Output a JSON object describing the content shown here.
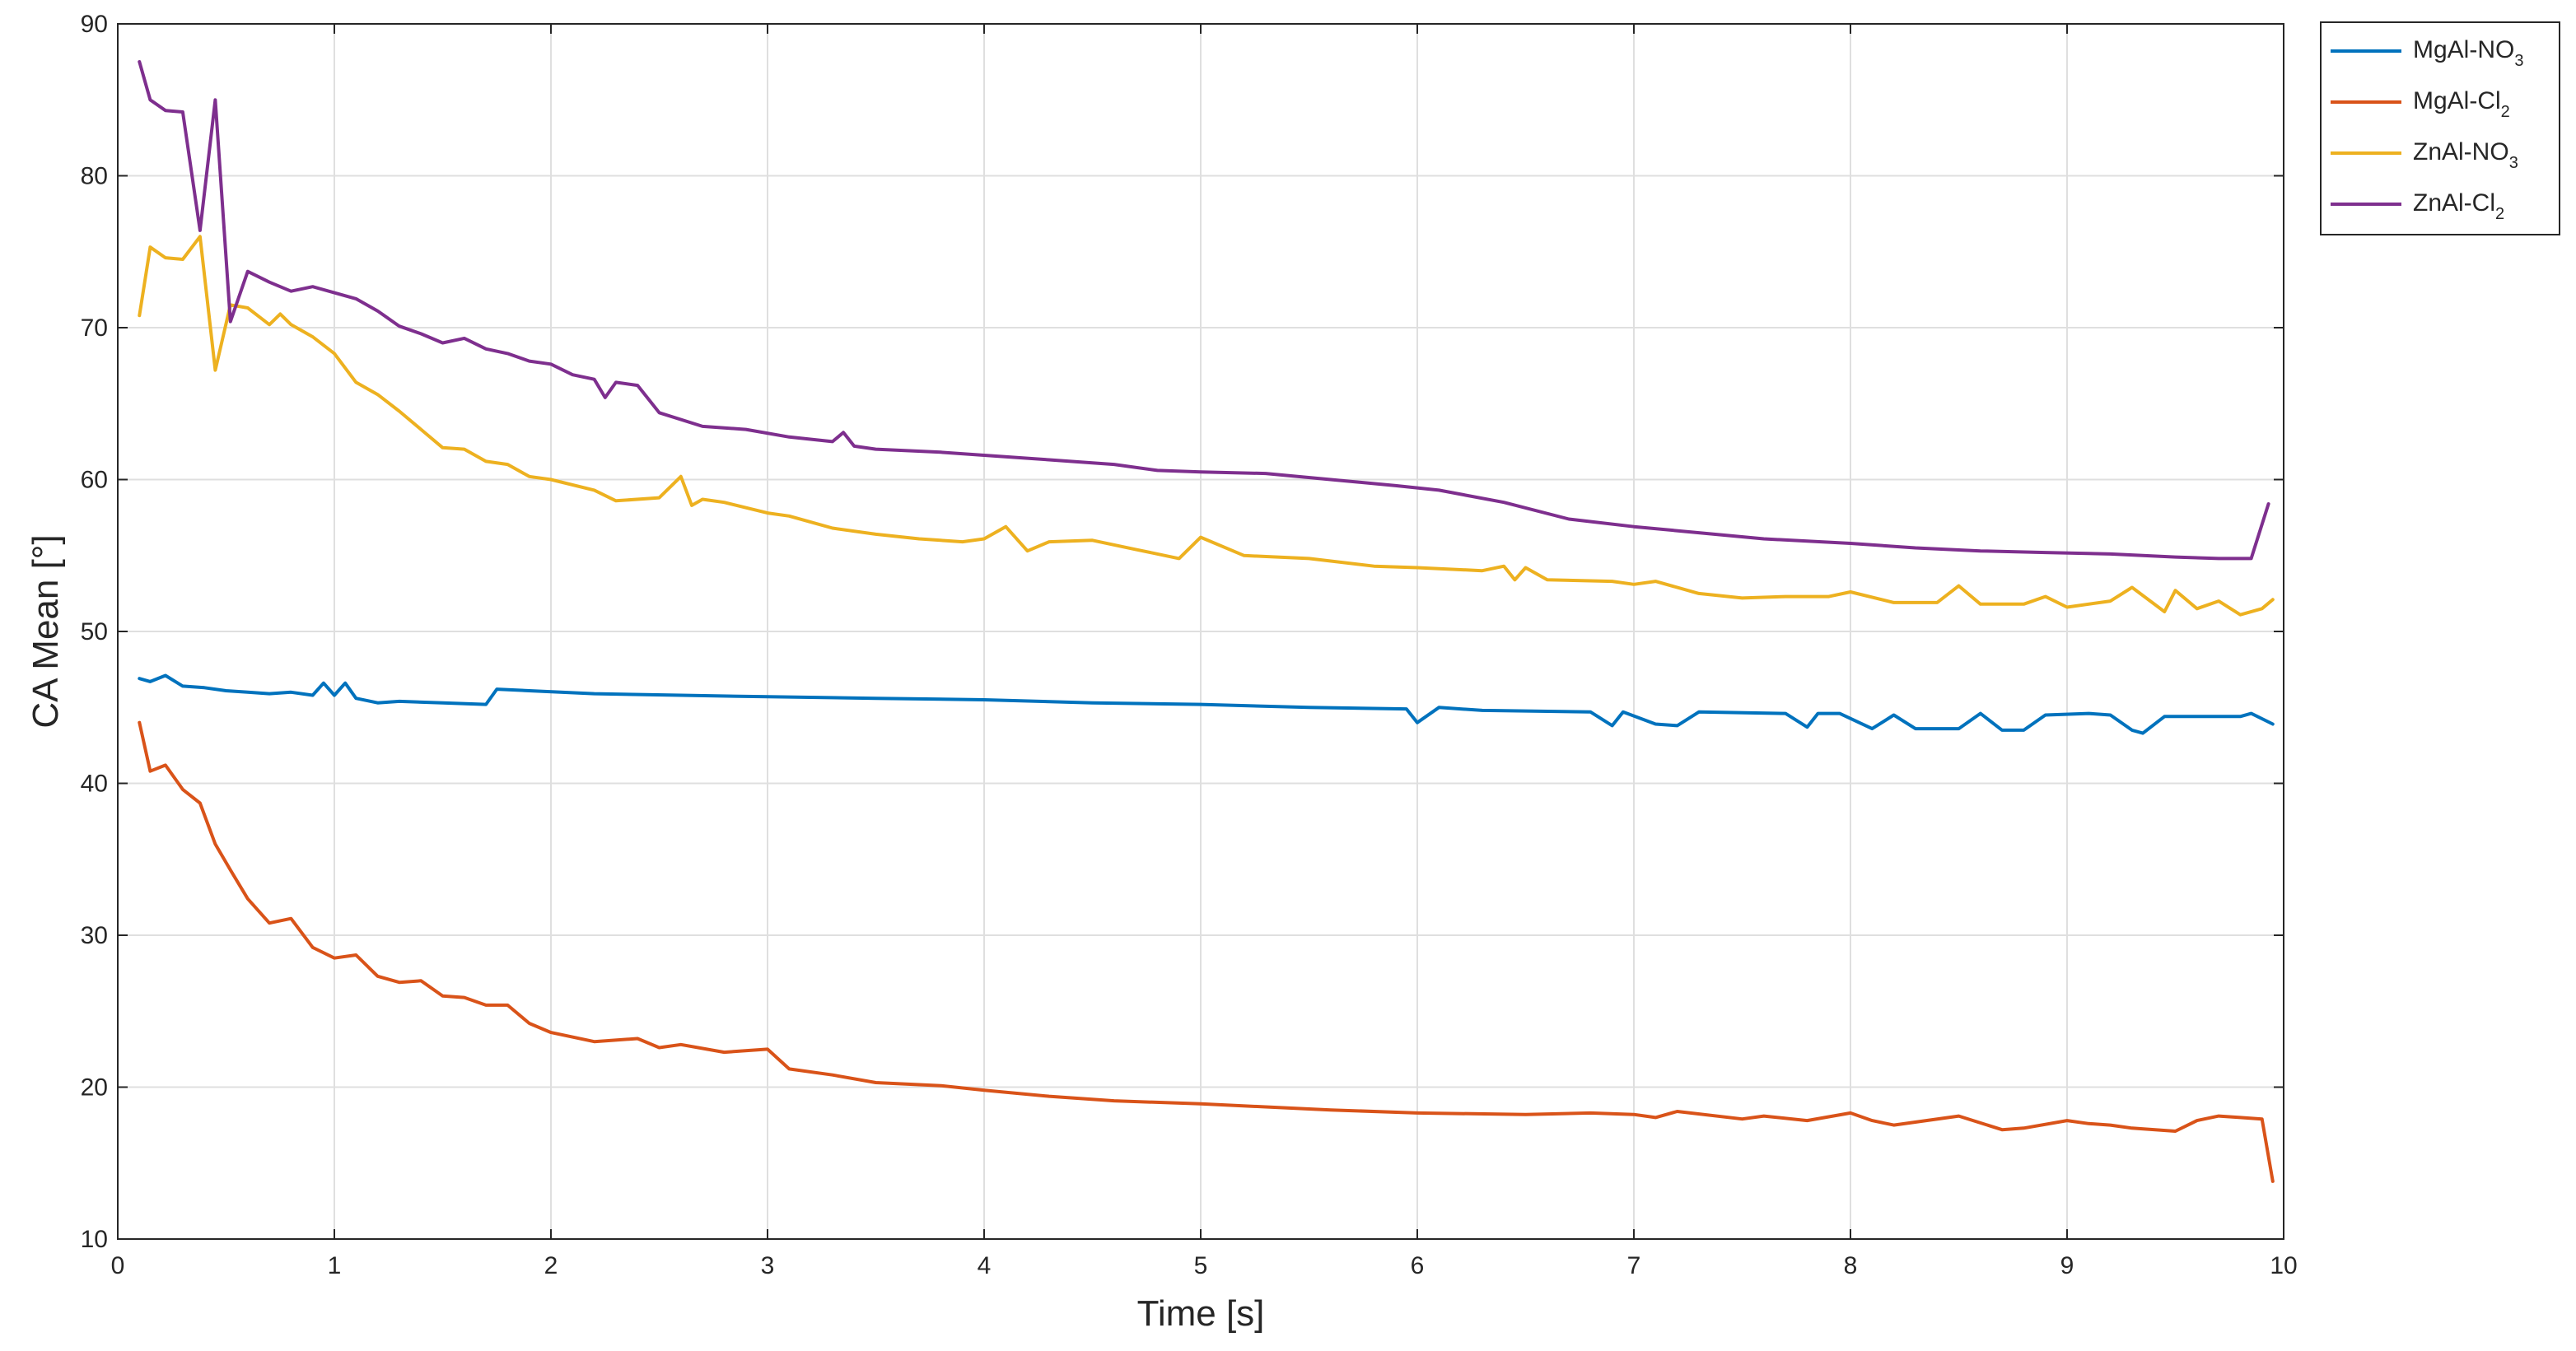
{
  "chart_data": {
    "type": "line",
    "xlabel": "Time [s]",
    "ylabel": "CA Mean [°]",
    "xlim": [
      0,
      10
    ],
    "ylim": [
      10,
      90
    ],
    "xticks": [
      0,
      1,
      2,
      3,
      4,
      5,
      6,
      7,
      8,
      9,
      10
    ],
    "yticks": [
      10,
      20,
      30,
      40,
      50,
      60,
      70,
      80,
      90
    ],
    "grid": true,
    "legend_position": "outside-top-right",
    "series": [
      {
        "name": "MgAl-NO3",
        "label_main": "MgAl-NO",
        "label_sub": "3",
        "color": "#0072BD",
        "x": [
          0.1,
          0.15,
          0.22,
          0.3,
          0.4,
          0.5,
          0.6,
          0.7,
          0.8,
          0.9,
          0.95,
          1.0,
          1.05,
          1.1,
          1.2,
          1.3,
          1.5,
          1.7,
          1.75,
          1.9,
          2.2,
          2.6,
          3.0,
          3.5,
          4.0,
          4.5,
          5.0,
          5.5,
          5.95,
          6.0,
          6.1,
          6.3,
          6.8,
          6.9,
          6.95,
          7.1,
          7.2,
          7.3,
          7.7,
          7.8,
          7.85,
          7.95,
          8.1,
          8.2,
          8.3,
          8.5,
          8.6,
          8.7,
          8.8,
          8.9,
          9.1,
          9.2,
          9.3,
          9.35,
          9.45,
          9.6,
          9.8,
          9.85,
          9.95
        ],
        "y": [
          46.9,
          46.7,
          47.1,
          46.4,
          46.3,
          46.1,
          46.0,
          45.9,
          46.0,
          45.8,
          46.6,
          45.8,
          46.6,
          45.6,
          45.3,
          45.4,
          45.3,
          45.2,
          46.2,
          46.1,
          45.9,
          45.8,
          45.7,
          45.6,
          45.5,
          45.3,
          45.2,
          45.0,
          44.9,
          44.0,
          45.0,
          44.8,
          44.7,
          43.8,
          44.7,
          43.9,
          43.8,
          44.7,
          44.6,
          43.7,
          44.6,
          44.6,
          43.6,
          44.5,
          43.6,
          43.6,
          44.6,
          43.5,
          43.5,
          44.5,
          44.6,
          44.5,
          43.5,
          43.3,
          44.4,
          44.4,
          44.4,
          44.6,
          43.9
        ]
      },
      {
        "name": "MgAl-Cl2",
        "label_main": "MgAl-Cl",
        "label_sub": "2",
        "color": "#D95319",
        "x": [
          0.1,
          0.15,
          0.22,
          0.3,
          0.38,
          0.45,
          0.52,
          0.6,
          0.7,
          0.8,
          0.9,
          1.0,
          1.1,
          1.2,
          1.3,
          1.4,
          1.5,
          1.6,
          1.7,
          1.8,
          1.9,
          2.0,
          2.2,
          2.4,
          2.5,
          2.6,
          2.8,
          3.0,
          3.1,
          3.3,
          3.5,
          3.8,
          4.0,
          4.3,
          4.6,
          5.0,
          5.3,
          5.6,
          6.0,
          6.5,
          6.8,
          7.0,
          7.1,
          7.2,
          7.5,
          7.6,
          7.8,
          8.0,
          8.1,
          8.2,
          8.5,
          8.7,
          8.8,
          9.0,
          9.1,
          9.2,
          9.3,
          9.5,
          9.6,
          9.7,
          9.8,
          9.9,
          9.95
        ],
        "y": [
          44.0,
          40.8,
          41.2,
          39.6,
          38.7,
          36.0,
          34.3,
          32.4,
          30.8,
          31.1,
          29.2,
          28.5,
          28.7,
          27.3,
          26.9,
          27.0,
          26.0,
          25.9,
          25.4,
          25.4,
          24.2,
          23.6,
          23.0,
          23.2,
          22.6,
          22.8,
          22.3,
          22.5,
          21.2,
          20.8,
          20.3,
          20.1,
          19.8,
          19.4,
          19.1,
          18.9,
          18.7,
          18.5,
          18.3,
          18.2,
          18.3,
          18.2,
          18.0,
          18.4,
          17.9,
          18.1,
          17.8,
          18.3,
          17.8,
          17.5,
          18.1,
          17.2,
          17.3,
          17.8,
          17.6,
          17.5,
          17.3,
          17.1,
          17.8,
          18.1,
          18.0,
          17.9,
          13.8
        ]
      },
      {
        "name": "ZnAl-NO3",
        "label_main": "ZnAl-NO",
        "label_sub": "3",
        "color": "#EDB120",
        "x": [
          0.1,
          0.15,
          0.22,
          0.3,
          0.38,
          0.45,
          0.52,
          0.6,
          0.7,
          0.75,
          0.8,
          0.9,
          1.0,
          1.1,
          1.2,
          1.3,
          1.4,
          1.5,
          1.6,
          1.7,
          1.8,
          1.9,
          2.0,
          2.2,
          2.3,
          2.5,
          2.6,
          2.65,
          2.7,
          2.8,
          3.0,
          3.1,
          3.3,
          3.5,
          3.7,
          3.9,
          4.0,
          4.1,
          4.2,
          4.3,
          4.5,
          4.7,
          4.9,
          5.0,
          5.2,
          5.5,
          5.8,
          6.0,
          6.3,
          6.4,
          6.45,
          6.5,
          6.6,
          6.9,
          7.0,
          7.1,
          7.3,
          7.5,
          7.7,
          7.9,
          8.0,
          8.2,
          8.4,
          8.5,
          8.6,
          8.8,
          8.9,
          9.0,
          9.2,
          9.3,
          9.45,
          9.5,
          9.6,
          9.7,
          9.8,
          9.9,
          9.95
        ],
        "y": [
          70.8,
          75.3,
          74.6,
          74.5,
          76.0,
          67.2,
          71.5,
          71.3,
          70.2,
          70.9,
          70.2,
          69.4,
          68.3,
          66.4,
          65.6,
          64.5,
          63.3,
          62.1,
          62.0,
          61.2,
          61.0,
          60.2,
          60.0,
          59.3,
          58.6,
          58.8,
          60.2,
          58.3,
          58.7,
          58.5,
          57.8,
          57.6,
          56.8,
          56.4,
          56.1,
          55.9,
          56.1,
          56.9,
          55.3,
          55.9,
          56.0,
          55.4,
          54.8,
          56.2,
          55.0,
          54.8,
          54.3,
          54.2,
          54.0,
          54.3,
          53.4,
          54.2,
          53.4,
          53.3,
          53.1,
          53.3,
          52.5,
          52.2,
          52.3,
          52.3,
          52.6,
          51.9,
          51.9,
          53.0,
          51.8,
          51.8,
          52.3,
          51.6,
          52.0,
          52.9,
          51.3,
          52.7,
          51.5,
          52.0,
          51.1,
          51.5,
          52.1
        ]
      },
      {
        "name": "ZnAl-Cl2",
        "label_main": "ZnAl-Cl",
        "label_sub": "2",
        "color": "#7E2F8E",
        "x": [
          0.1,
          0.15,
          0.22,
          0.3,
          0.38,
          0.45,
          0.52,
          0.6,
          0.7,
          0.8,
          0.9,
          1.0,
          1.1,
          1.2,
          1.3,
          1.4,
          1.5,
          1.6,
          1.7,
          1.8,
          1.9,
          2.0,
          2.1,
          2.2,
          2.25,
          2.3,
          2.4,
          2.5,
          2.7,
          2.9,
          3.1,
          3.3,
          3.35,
          3.4,
          3.5,
          3.8,
          4.0,
          4.3,
          4.6,
          4.8,
          5.0,
          5.3,
          5.6,
          5.9,
          6.1,
          6.4,
          6.7,
          7.0,
          7.3,
          7.6,
          8.0,
          8.3,
          8.6,
          8.9,
          9.2,
          9.5,
          9.7,
          9.85,
          9.93
        ],
        "y": [
          87.5,
          85.0,
          84.3,
          84.2,
          76.4,
          85.0,
          70.4,
          73.7,
          73.0,
          72.4,
          72.7,
          72.3,
          71.9,
          71.1,
          70.1,
          69.6,
          69.0,
          69.3,
          68.6,
          68.3,
          67.8,
          67.6,
          66.9,
          66.6,
          65.4,
          66.4,
          66.2,
          64.4,
          63.5,
          63.3,
          62.8,
          62.5,
          63.1,
          62.2,
          62.0,
          61.8,
          61.6,
          61.3,
          61.0,
          60.6,
          60.5,
          60.4,
          60.0,
          59.6,
          59.3,
          58.5,
          57.4,
          56.9,
          56.5,
          56.1,
          55.8,
          55.5,
          55.3,
          55.2,
          55.1,
          54.9,
          54.8,
          54.8,
          58.4
        ]
      }
    ]
  }
}
